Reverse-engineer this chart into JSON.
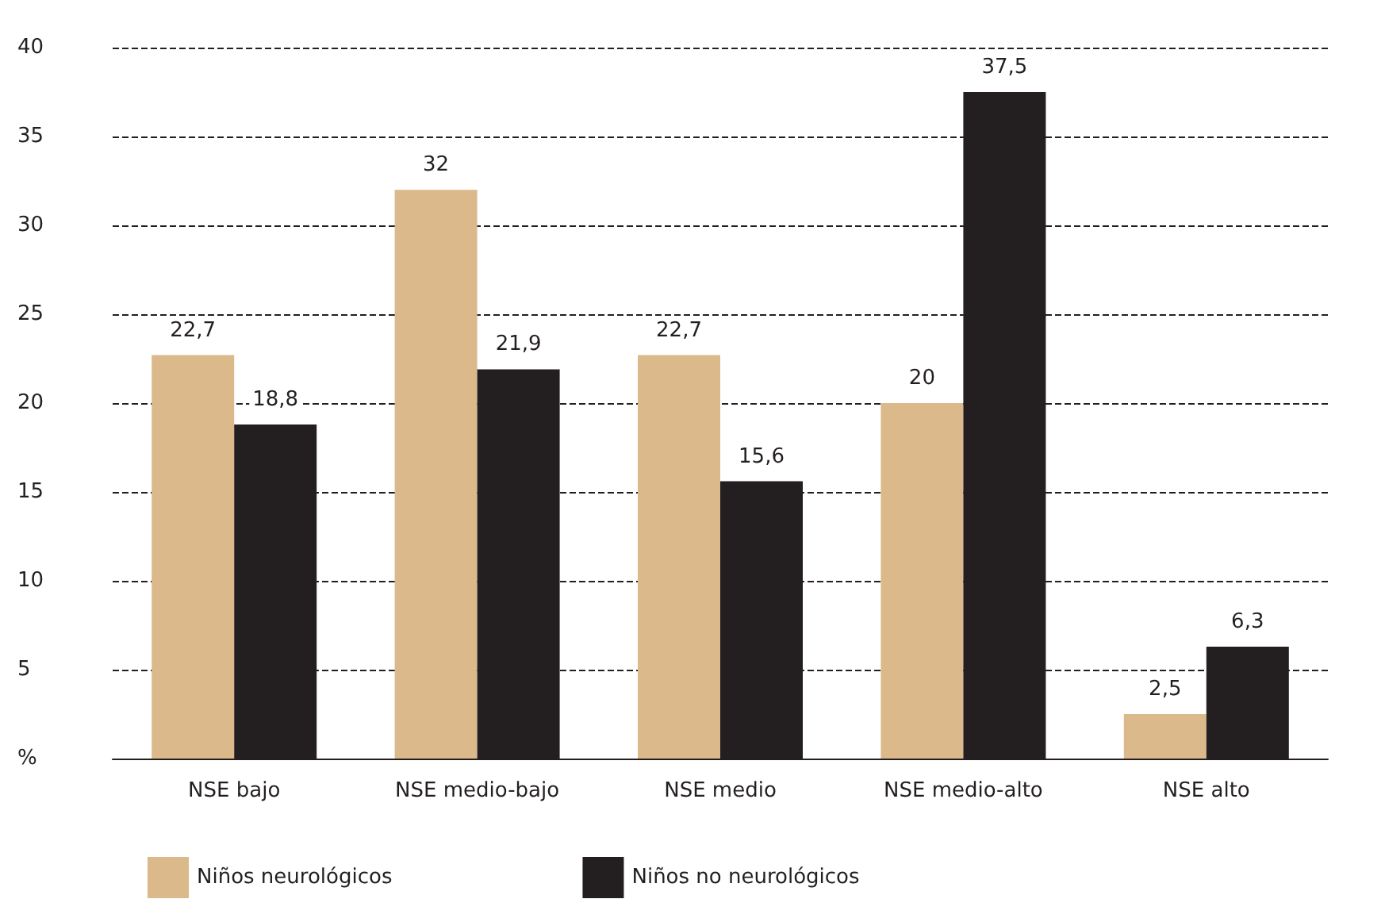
{
  "chart_data": {
    "type": "bar",
    "categories": [
      "NSE bajo",
      "NSE medio-bajo",
      "NSE medio",
      "NSE medio-alto",
      "NSE alto"
    ],
    "series": [
      {
        "name": "Niños neurológicos",
        "color": "#dbb98a",
        "values": [
          22.7,
          32,
          22.7,
          20,
          2.5
        ],
        "value_labels": [
          "22,7",
          "32",
          "22,7",
          "20",
          "2,5"
        ]
      },
      {
        "name": "Niños no neurológicos",
        "color": "#231f20",
        "values": [
          18.8,
          21.9,
          15.6,
          37.5,
          6.3
        ],
        "value_labels": [
          "18,8",
          "21,9",
          "15,6",
          "37,5",
          "6,3"
        ]
      }
    ],
    "ylim": [
      0,
      40
    ],
    "yticks": [
      {
        "value": 0,
        "label": "%"
      },
      5,
      10,
      15,
      20,
      25,
      30,
      35,
      40
    ],
    "grid": "y",
    "legend": "bottom left"
  }
}
